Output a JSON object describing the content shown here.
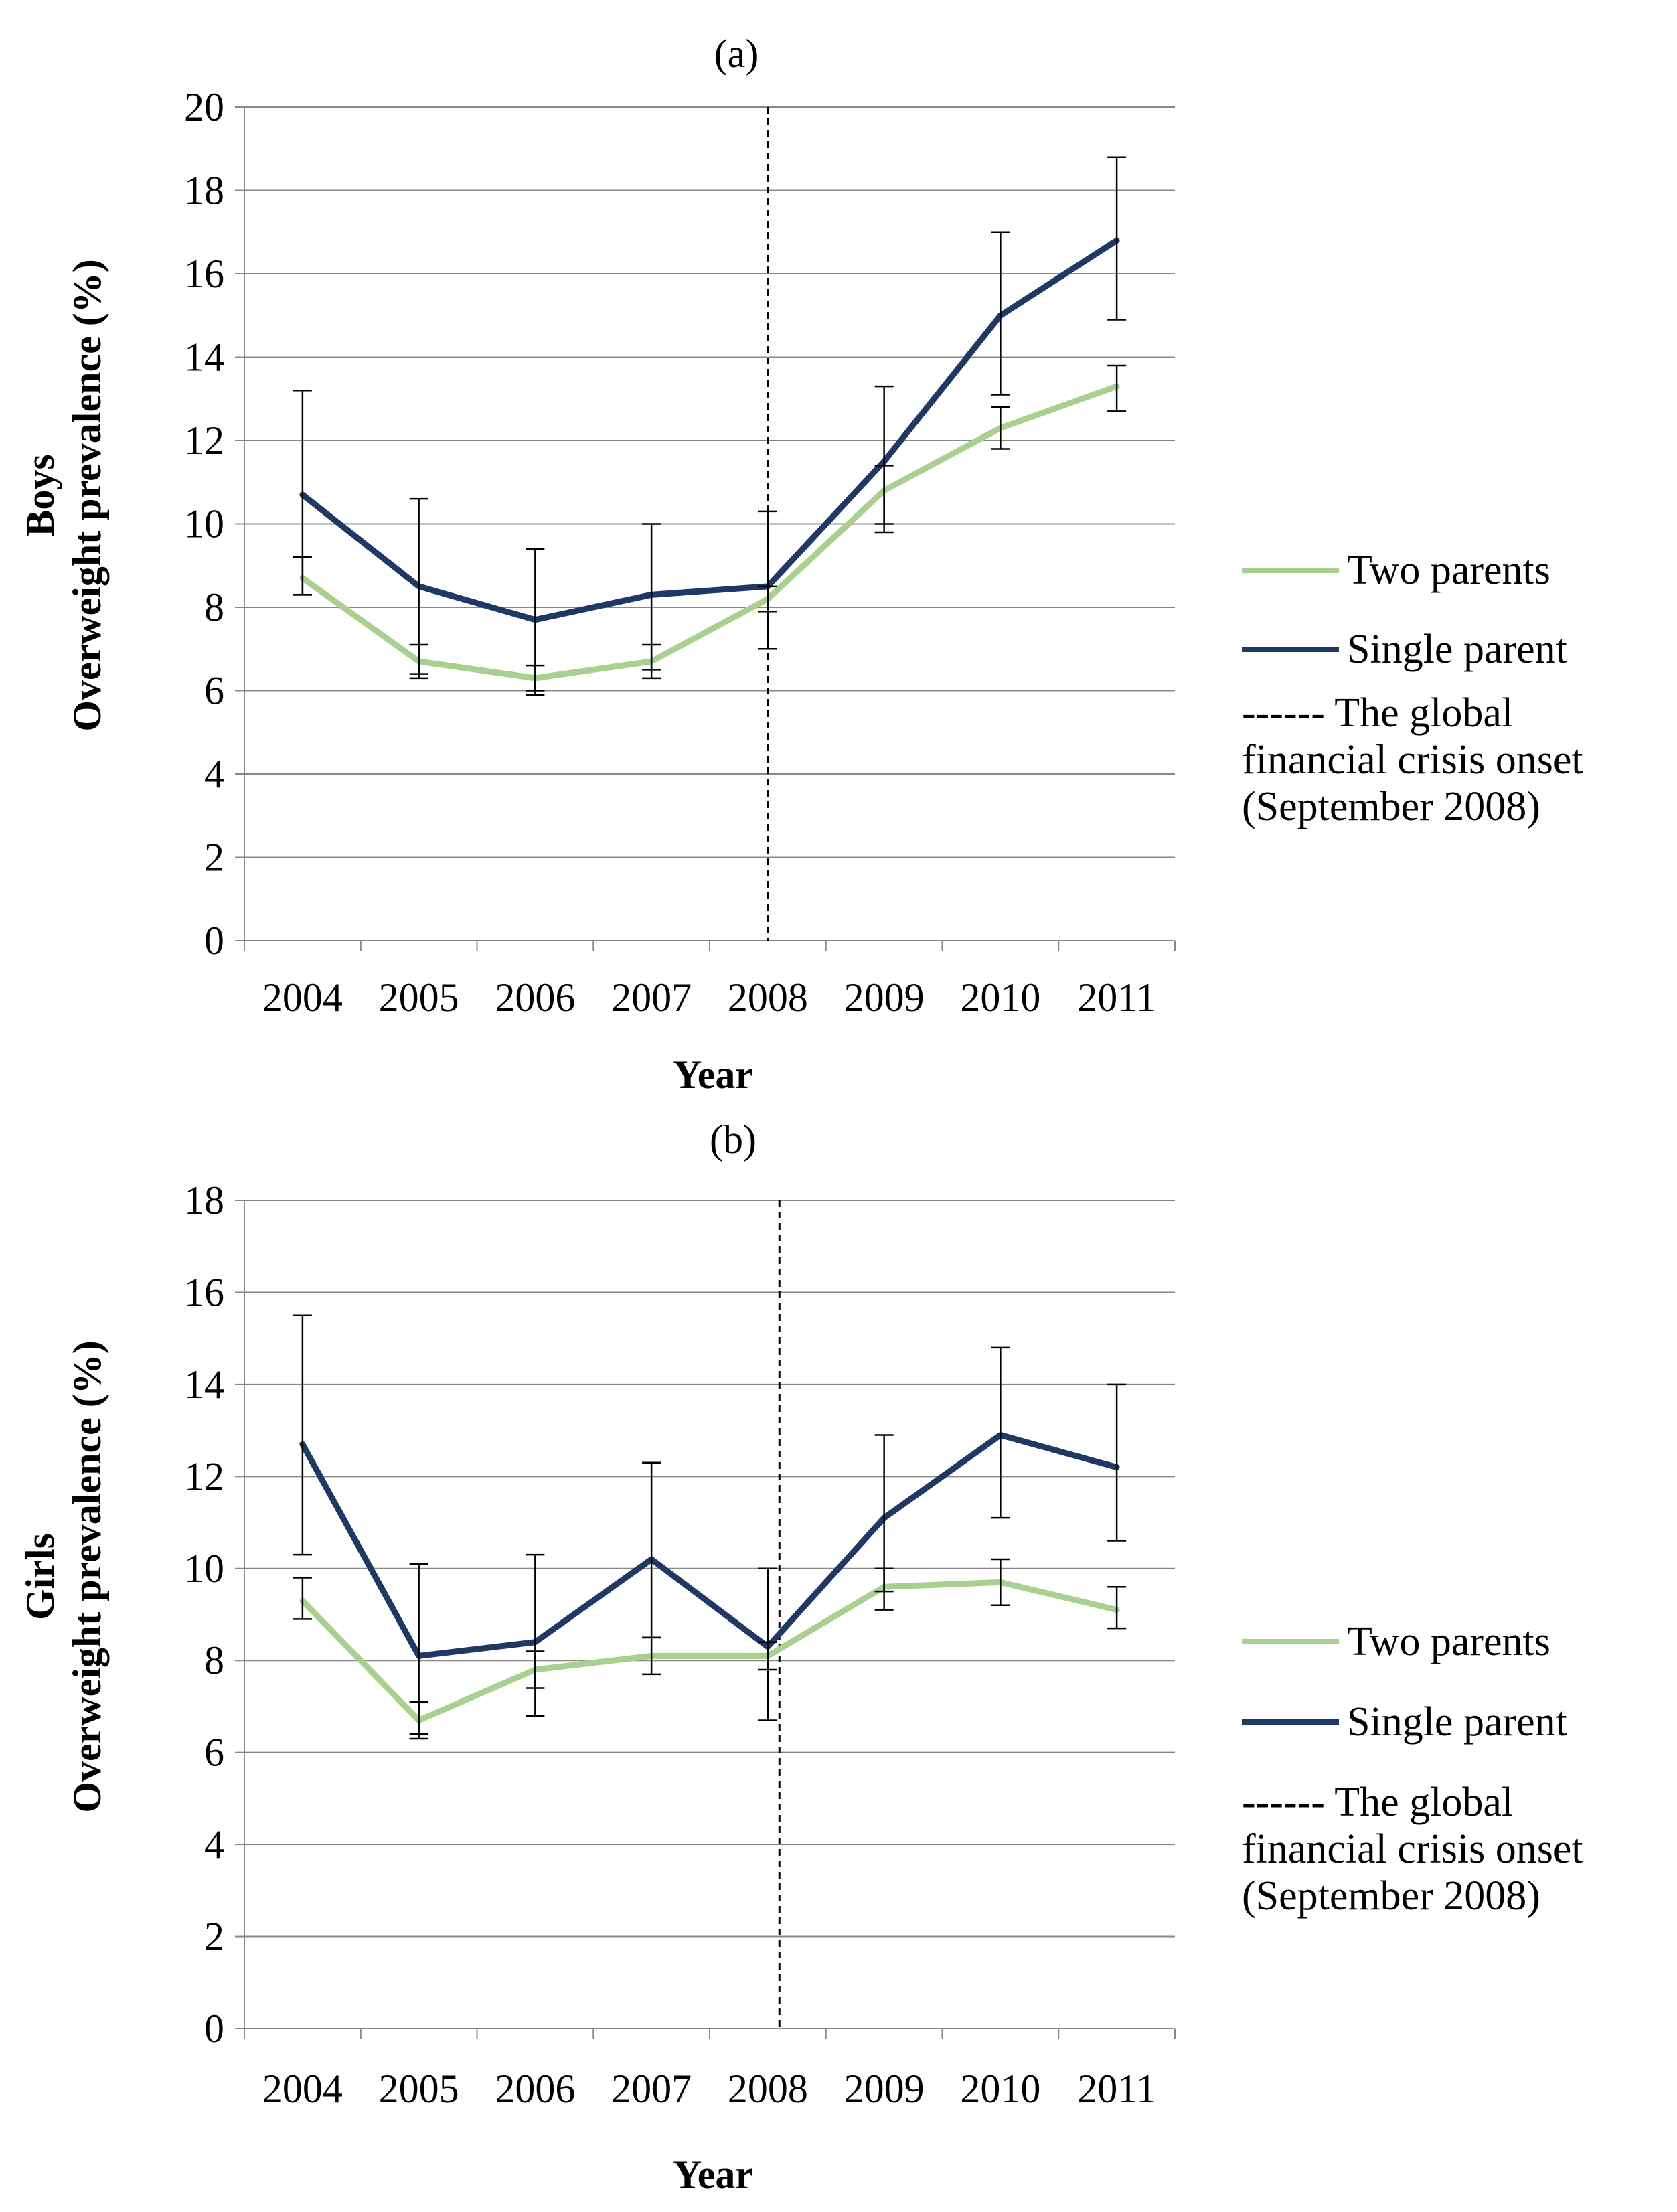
{
  "chart_data": [
    {
      "type": "line",
      "title": "(a)",
      "xlabel": "Year",
      "ylabel_group": "Boys",
      "ylabel": "Overweight prevalence (%)",
      "categories": [
        "2004",
        "2005",
        "2006",
        "2007",
        "2008",
        "2009",
        "2010",
        "2011"
      ],
      "ylim": [
        0,
        20
      ],
      "yticks": [
        "0",
        "2",
        "4",
        "6",
        "8",
        "10",
        "12",
        "14",
        "16",
        "18",
        "20"
      ],
      "grid": true,
      "legend_position": "right",
      "crisis_line_at": 4.5,
      "series": [
        {
          "name": "Two parents",
          "color": "#a9d08e",
          "values": [
            8.7,
            6.7,
            6.3,
            6.7,
            8.2,
            10.8,
            12.3,
            13.3
          ],
          "error_low": [
            8.3,
            6.3,
            5.9,
            6.3,
            7.9,
            9.8,
            11.8,
            12.7
          ],
          "error_high": [
            9.2,
            7.1,
            6.6,
            7.1,
            8.5,
            11.4,
            12.8,
            13.8
          ]
        },
        {
          "name": "Single parent",
          "color": "#1f3864",
          "values": [
            10.7,
            8.5,
            7.7,
            8.3,
            8.5,
            11.5,
            15.0,
            16.8
          ],
          "error_low": [
            8.3,
            6.4,
            6.0,
            6.5,
            7.0,
            10.0,
            13.1,
            14.9
          ],
          "error_high": [
            13.2,
            10.6,
            9.4,
            10.0,
            10.3,
            13.3,
            17.0,
            18.8
          ]
        }
      ]
    },
    {
      "type": "line",
      "title": "(b)",
      "xlabel": "Year",
      "ylabel_group": "Girls",
      "ylabel": "Overweight prevalence (%)",
      "categories": [
        "2004",
        "2005",
        "2006",
        "2007",
        "2008",
        "2009",
        "2010",
        "2011"
      ],
      "ylim": [
        0,
        18
      ],
      "yticks": [
        "0",
        "2",
        "4",
        "6",
        "8",
        "10",
        "12",
        "14",
        "16",
        "18"
      ],
      "grid": true,
      "legend_position": "right",
      "crisis_line_at": 4.6,
      "series": [
        {
          "name": "Two parents",
          "color": "#a9d08e",
          "values": [
            9.3,
            6.7,
            7.8,
            8.1,
            8.1,
            9.6,
            9.7,
            9.1
          ],
          "error_low": [
            8.9,
            6.3,
            7.4,
            7.7,
            7.8,
            9.1,
            9.2,
            8.7
          ],
          "error_high": [
            9.8,
            7.1,
            8.2,
            8.5,
            8.4,
            10.0,
            10.2,
            9.6
          ]
        },
        {
          "name": "Single parent",
          "color": "#1f3864",
          "values": [
            12.7,
            8.1,
            8.4,
            10.2,
            8.3,
            11.1,
            12.9,
            12.2
          ],
          "error_low": [
            10.3,
            6.4,
            6.8,
            8.5,
            6.7,
            9.5,
            11.1,
            10.6
          ],
          "error_high": [
            15.5,
            10.1,
            10.3,
            12.3,
            10.0,
            12.9,
            14.8,
            14.0
          ]
        }
      ]
    }
  ],
  "legend": {
    "two_parents": "Two parents",
    "single_parent": "Single parent",
    "crisis_line1": "------ The global",
    "crisis_line2": "financial crisis onset",
    "crisis_line3": "(September 2008)"
  },
  "colors": {
    "two_parents": "#a9d08e",
    "single_parent": "#1f3864",
    "grid": "#888888"
  }
}
